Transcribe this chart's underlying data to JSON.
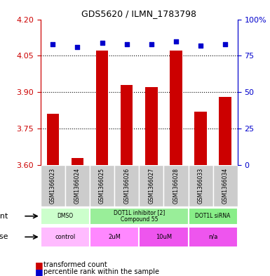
{
  "title": "GDS5620 / ILMN_1783798",
  "samples": [
    "GSM1366023",
    "GSM1366024",
    "GSM1366025",
    "GSM1366026",
    "GSM1366027",
    "GSM1366028",
    "GSM1366033",
    "GSM1366034"
  ],
  "red_values": [
    3.81,
    3.63,
    4.07,
    3.93,
    3.92,
    4.07,
    3.82,
    3.88
  ],
  "blue_values": [
    83,
    81,
    84,
    83,
    83,
    85,
    82,
    83
  ],
  "ylim_left": [
    3.6,
    4.2
  ],
  "ylim_right": [
    0,
    100
  ],
  "yticks_left": [
    3.6,
    3.75,
    3.9,
    4.05,
    4.2
  ],
  "yticks_right": [
    0,
    25,
    50,
    75,
    100
  ],
  "ytick_labels_right": [
    "0",
    "25",
    "50",
    "75",
    "100%"
  ],
  "agent_groups": [
    {
      "label": "DMSO",
      "start": 0,
      "end": 2,
      "color": "#ccffcc"
    },
    {
      "label": "DOT1L inhibitor [2]\nCompound 55",
      "start": 2,
      "end": 6,
      "color": "#99ee99"
    },
    {
      "label": "DOT1L siRNA",
      "start": 6,
      "end": 8,
      "color": "#88ee88"
    }
  ],
  "dose_groups": [
    {
      "label": "control",
      "start": 0,
      "end": 2,
      "color": "#ffaaff"
    },
    {
      "label": "2uM",
      "start": 2,
      "end": 4,
      "color": "#ff88ff"
    },
    {
      "label": "10uM",
      "start": 4,
      "end": 6,
      "color": "#ff66ff"
    },
    {
      "label": "n/a",
      "start": 6,
      "end": 8,
      "color": "#ff55ff"
    }
  ],
  "legend_red": "transformed count",
  "legend_blue": "percentile rank within the sample",
  "bar_color": "#cc0000",
  "dot_color": "#0000cc",
  "bar_width": 0.5,
  "grid_color": "#000000",
  "tick_color_left": "#cc0000",
  "tick_color_right": "#0000cc",
  "sample_bg_color": "#cccccc"
}
